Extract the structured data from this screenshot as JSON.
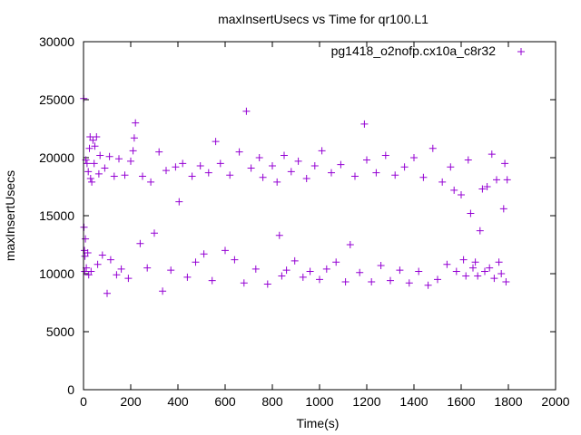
{
  "chart_data": {
    "type": "scatter",
    "title": "maxInsertUsecs vs Time for qr100.L1",
    "xlabel": "Time(s)",
    "ylabel": "maxInsertUsecs",
    "xlim": [
      0,
      2000
    ],
    "ylim": [
      0,
      30000
    ],
    "x_ticks": [
      "0",
      "200",
      "400",
      "600",
      "800",
      "1000",
      "1200",
      "1400",
      "1600",
      "1800",
      "2000"
    ],
    "y_ticks": [
      "0",
      "5000",
      "10000",
      "15000",
      "20000",
      "25000",
      "30000"
    ],
    "grid": false,
    "legend_position": "top-right",
    "marker": "+",
    "color": "#9400d3",
    "series": [
      {
        "name": "pg1418_o2nofp.cx10a_c8r32",
        "points": [
          [
            1,
            25100
          ],
          [
            2,
            14000
          ],
          [
            4,
            12000
          ],
          [
            5,
            10200
          ],
          [
            6,
            11500
          ],
          [
            8,
            13000
          ],
          [
            10,
            19800
          ],
          [
            12,
            10500
          ],
          [
            15,
            19500
          ],
          [
            18,
            11800
          ],
          [
            20,
            18800
          ],
          [
            22,
            9900
          ],
          [
            25,
            20800
          ],
          [
            28,
            21800
          ],
          [
            30,
            18200
          ],
          [
            32,
            10200
          ],
          [
            35,
            17900
          ],
          [
            40,
            21500
          ],
          [
            45,
            19500
          ],
          [
            48,
            21000
          ],
          [
            55,
            21800
          ],
          [
            60,
            10800
          ],
          [
            65,
            18600
          ],
          [
            70,
            20200
          ],
          [
            80,
            11600
          ],
          [
            90,
            19100
          ],
          [
            100,
            8300
          ],
          [
            110,
            20100
          ],
          [
            115,
            11200
          ],
          [
            130,
            18400
          ],
          [
            140,
            9900
          ],
          [
            150,
            19900
          ],
          [
            160,
            10400
          ],
          [
            175,
            18500
          ],
          [
            190,
            9600
          ],
          [
            200,
            19700
          ],
          [
            210,
            20600
          ],
          [
            215,
            21700
          ],
          [
            220,
            23000
          ],
          [
            240,
            12600
          ],
          [
            250,
            18400
          ],
          [
            270,
            10500
          ],
          [
            285,
            17900
          ],
          [
            300,
            13500
          ],
          [
            320,
            20500
          ],
          [
            335,
            8500
          ],
          [
            350,
            18900
          ],
          [
            370,
            10300
          ],
          [
            390,
            19200
          ],
          [
            405,
            16200
          ],
          [
            420,
            19500
          ],
          [
            440,
            9700
          ],
          [
            460,
            18400
          ],
          [
            475,
            11000
          ],
          [
            495,
            19300
          ],
          [
            510,
            11700
          ],
          [
            530,
            18700
          ],
          [
            545,
            9400
          ],
          [
            560,
            21400
          ],
          [
            580,
            19500
          ],
          [
            600,
            12000
          ],
          [
            620,
            18500
          ],
          [
            640,
            11200
          ],
          [
            660,
            20500
          ],
          [
            680,
            9200
          ],
          [
            690,
            24000
          ],
          [
            710,
            19100
          ],
          [
            730,
            10400
          ],
          [
            745,
            20000
          ],
          [
            760,
            18300
          ],
          [
            780,
            9100
          ],
          [
            800,
            19300
          ],
          [
            820,
            17900
          ],
          [
            830,
            13300
          ],
          [
            840,
            9800
          ],
          [
            850,
            20200
          ],
          [
            860,
            10300
          ],
          [
            880,
            18800
          ],
          [
            895,
            11100
          ],
          [
            910,
            19700
          ],
          [
            930,
            9700
          ],
          [
            945,
            18200
          ],
          [
            960,
            10200
          ],
          [
            980,
            19300
          ],
          [
            1000,
            9500
          ],
          [
            1010,
            20600
          ],
          [
            1030,
            10400
          ],
          [
            1050,
            18700
          ],
          [
            1070,
            11000
          ],
          [
            1090,
            19400
          ],
          [
            1110,
            9300
          ],
          [
            1130,
            12500
          ],
          [
            1150,
            18400
          ],
          [
            1170,
            10100
          ],
          [
            1190,
            22900
          ],
          [
            1200,
            19800
          ],
          [
            1220,
            9300
          ],
          [
            1240,
            18700
          ],
          [
            1260,
            10700
          ],
          [
            1280,
            20200
          ],
          [
            1300,
            9400
          ],
          [
            1320,
            18500
          ],
          [
            1340,
            10300
          ],
          [
            1360,
            19200
          ],
          [
            1380,
            9200
          ],
          [
            1400,
            20000
          ],
          [
            1420,
            10200
          ],
          [
            1440,
            18300
          ],
          [
            1460,
            9000
          ],
          [
            1480,
            20800
          ],
          [
            1500,
            9500
          ],
          [
            1520,
            17900
          ],
          [
            1540,
            10800
          ],
          [
            1555,
            19200
          ],
          [
            1570,
            17200
          ],
          [
            1580,
            10200
          ],
          [
            1600,
            16800
          ],
          [
            1610,
            11200
          ],
          [
            1620,
            9800
          ],
          [
            1630,
            19800
          ],
          [
            1640,
            15200
          ],
          [
            1650,
            10500
          ],
          [
            1660,
            11000
          ],
          [
            1670,
            9800
          ],
          [
            1680,
            13700
          ],
          [
            1690,
            17300
          ],
          [
            1700,
            10200
          ],
          [
            1710,
            17500
          ],
          [
            1720,
            10500
          ],
          [
            1730,
            20300
          ],
          [
            1740,
            9600
          ],
          [
            1750,
            18100
          ],
          [
            1760,
            11000
          ],
          [
            1770,
            10000
          ],
          [
            1780,
            15600
          ],
          [
            1785,
            19500
          ],
          [
            1790,
            9300
          ],
          [
            1795,
            18100
          ]
        ]
      }
    ]
  }
}
